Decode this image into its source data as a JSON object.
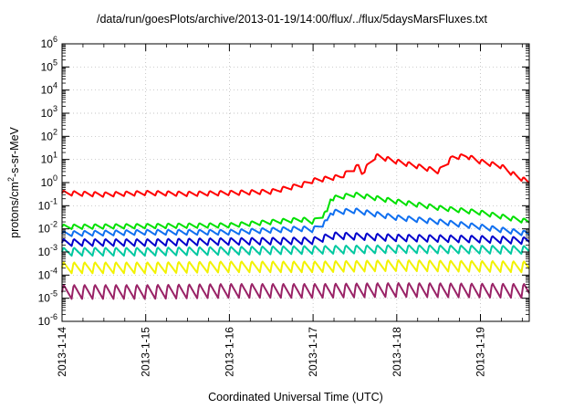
{
  "chart_data": {
    "type": "line",
    "title": "/data/run/goesPlots/archive/2013-01-19/14:00/flux/../flux/5daysMarsFluxes.txt",
    "xlabel": "Coordinated Universal Time (UTC)",
    "ylabel_base": "protons/cm",
    "ylabel_sup": "2",
    "ylabel_rest": "-s-sr-MeV",
    "yscale": "log",
    "ylim": [
      1e-06,
      1000000.0
    ],
    "y_ticks": [
      {
        "base": "10",
        "exp": "-6"
      },
      {
        "base": "10",
        "exp": "-5"
      },
      {
        "base": "10",
        "exp": "-4"
      },
      {
        "base": "10",
        "exp": "-3"
      },
      {
        "base": "10",
        "exp": "-2"
      },
      {
        "base": "10",
        "exp": "-1"
      },
      {
        "base": "10",
        "exp": "0"
      },
      {
        "base": "10",
        "exp": "1"
      },
      {
        "base": "10",
        "exp": "2"
      },
      {
        "base": "10",
        "exp": "3"
      },
      {
        "base": "10",
        "exp": "4"
      },
      {
        "base": "10",
        "exp": "5"
      },
      {
        "base": "10",
        "exp": "6"
      }
    ],
    "x_ticks": [
      "2013-1-14",
      "2013-1-15",
      "2013-1-16",
      "2013-1-17",
      "2013-1-18",
      "2013-1-19"
    ],
    "xlim": [
      "2013-01-14 00:00",
      "2013-01-19 14:00"
    ],
    "grid": true,
    "sawtooth_period_hours": 3,
    "series": [
      {
        "color": "#ff0000",
        "tooth_ratio": 1.7,
        "points": [
          [
            "2013-01-14 00:00",
            0.35
          ],
          [
            "2013-01-14 12:00",
            0.3
          ],
          [
            "2013-01-15 00:00",
            0.35
          ],
          [
            "2013-01-15 12:00",
            0.32
          ],
          [
            "2013-01-16 00:00",
            0.35
          ],
          [
            "2013-01-16 12:00",
            0.4
          ],
          [
            "2013-01-16 21:00",
            0.8
          ],
          [
            "2013-01-17 00:00",
            1.2
          ],
          [
            "2013-01-17 08:00",
            1.8
          ],
          [
            "2013-01-17 13:00",
            5
          ],
          [
            "2013-01-17 14:00",
            2.5
          ],
          [
            "2013-01-17 18:00",
            14
          ],
          [
            "2013-01-18 00:00",
            8
          ],
          [
            "2013-01-18 06:00",
            5
          ],
          [
            "2013-01-18 12:00",
            3
          ],
          [
            "2013-01-18 16:00",
            12
          ],
          [
            "2013-01-18 20:00",
            14
          ],
          [
            "2013-01-19 00:00",
            8
          ],
          [
            "2013-01-19 06:00",
            5
          ],
          [
            "2013-01-19 10:00",
            2
          ],
          [
            "2013-01-19 14:00",
            1
          ]
        ]
      },
      {
        "color": "#00e000",
        "tooth_ratio": 1.7,
        "points": [
          [
            "2013-01-14 00:00",
            0.012
          ],
          [
            "2013-01-15 00:00",
            0.013
          ],
          [
            "2013-01-16 00:00",
            0.014
          ],
          [
            "2013-01-16 21:00",
            0.025
          ],
          [
            "2013-01-17 00:00",
            0.02
          ],
          [
            "2013-01-17 04:00",
            0.05
          ],
          [
            "2013-01-17 05:00",
            0.2
          ],
          [
            "2013-01-17 12:00",
            0.3
          ],
          [
            "2013-01-18 00:00",
            0.15
          ],
          [
            "2013-01-18 12:00",
            0.08
          ],
          [
            "2013-01-19 00:00",
            0.05
          ],
          [
            "2013-01-19 14:00",
            0.02
          ]
        ]
      },
      {
        "color": "#1070f0",
        "tooth_ratio": 1.8,
        "points": [
          [
            "2013-01-14 00:00",
            0.006
          ],
          [
            "2013-01-15 00:00",
            0.007
          ],
          [
            "2013-01-16 00:00",
            0.007
          ],
          [
            "2013-01-16 21:00",
            0.01
          ],
          [
            "2013-01-17 00:00",
            0.009
          ],
          [
            "2013-01-17 04:00",
            0.02
          ],
          [
            "2013-01-17 05:00",
            0.05
          ],
          [
            "2013-01-17 12:00",
            0.06
          ],
          [
            "2013-01-18 00:00",
            0.03
          ],
          [
            "2013-01-18 12:00",
            0.02
          ],
          [
            "2013-01-19 00:00",
            0.012
          ],
          [
            "2013-01-19 14:00",
            0.006
          ]
        ]
      },
      {
        "color": "#0000cc",
        "tooth_ratio": 2.2,
        "points": [
          [
            "2013-01-14 00:00",
            0.0025
          ],
          [
            "2013-01-15 00:00",
            0.0025
          ],
          [
            "2013-01-16 00:00",
            0.0028
          ],
          [
            "2013-01-17 00:00",
            0.003
          ],
          [
            "2013-01-17 06:00",
            0.005
          ],
          [
            "2013-01-18 00:00",
            0.004
          ],
          [
            "2013-01-19 00:00",
            0.0035
          ],
          [
            "2013-01-19 14:00",
            0.003
          ]
        ]
      },
      {
        "color": "#00c8a0",
        "tooth_ratio": 2.5,
        "points": [
          [
            "2013-01-14 00:00",
            0.001
          ],
          [
            "2013-01-15 00:00",
            0.001
          ],
          [
            "2013-01-16 00:00",
            0.0011
          ],
          [
            "2013-01-17 00:00",
            0.0012
          ],
          [
            "2013-01-18 00:00",
            0.0013
          ],
          [
            "2013-01-19 14:00",
            0.0012
          ]
        ]
      },
      {
        "color": "#f2f200",
        "tooth_ratio": 3.5,
        "points": [
          [
            "2013-01-14 00:00",
            0.0002
          ],
          [
            "2013-01-15 00:00",
            0.0002
          ],
          [
            "2013-01-16 00:00",
            0.00022
          ],
          [
            "2013-01-17 00:00",
            0.00022
          ],
          [
            "2013-01-18 00:00",
            0.00025
          ],
          [
            "2013-01-19 14:00",
            0.00022
          ]
        ]
      },
      {
        "color": "#992266",
        "tooth_ratio": 5,
        "points": [
          [
            "2013-01-14 00:00",
            1.8e-05
          ],
          [
            "2013-01-15 00:00",
            1.8e-05
          ],
          [
            "2013-01-16 00:00",
            2e-05
          ],
          [
            "2013-01-17 00:00",
            2e-05
          ],
          [
            "2013-01-18 00:00",
            2.2e-05
          ],
          [
            "2013-01-19 14:00",
            2e-05
          ]
        ]
      }
    ]
  }
}
